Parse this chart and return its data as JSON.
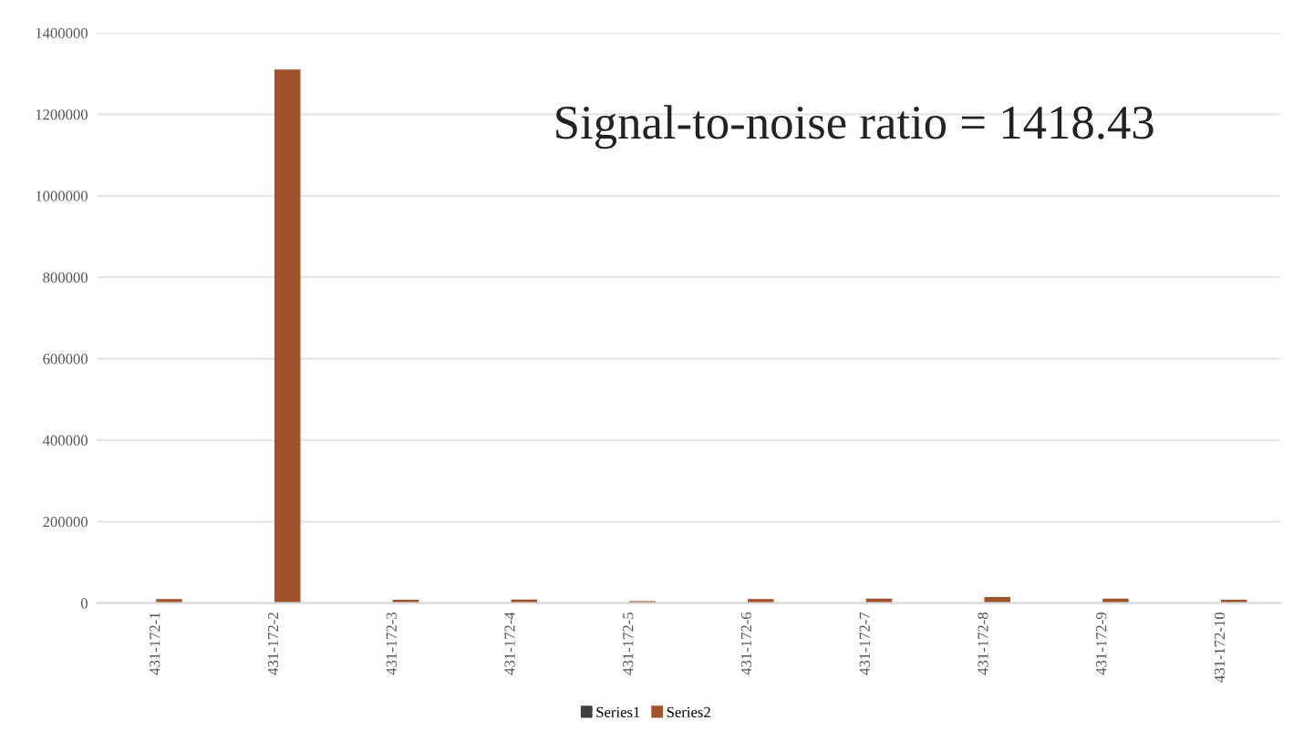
{
  "chart_data": {
    "type": "bar",
    "categories": [
      "431-172-1",
      "431-172-2",
      "431-172-3",
      "431-172-4",
      "431-172-5",
      "431-172-6",
      "431-172-7",
      "431-172-8",
      "431-172-9",
      "431-172-10"
    ],
    "series": [
      {
        "name": "Series1",
        "color": "#404040",
        "values": [
          0,
          0,
          0,
          0,
          0,
          0,
          0,
          0,
          0,
          0
        ]
      },
      {
        "name": "Series2",
        "color": "#a0522d",
        "values": [
          10000,
          1310000,
          8000,
          9000,
          5000,
          10000,
          11000,
          15000,
          11000,
          8000
        ]
      }
    ],
    "ylim": [
      0,
      1400000
    ],
    "yticks": [
      0,
      200000,
      400000,
      600000,
      800000,
      1000000,
      1200000,
      1400000
    ],
    "grid": "y",
    "legend": "bottom",
    "annotations": [
      "Signal-to-noise ratio = 1418.43"
    ]
  }
}
